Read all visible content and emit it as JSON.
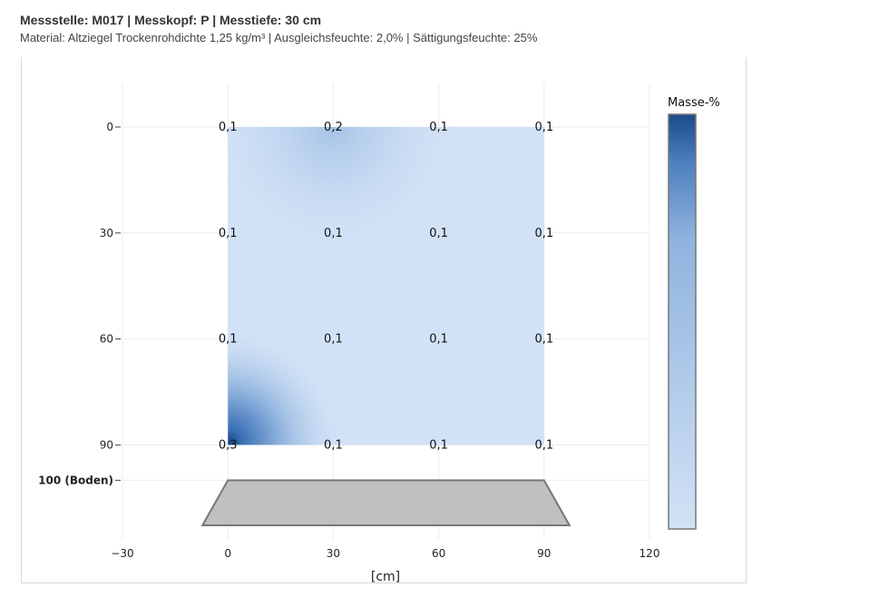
{
  "header": {
    "title": "Messstelle: M017 | Messkopf: P | Messtiefe: 30 cm",
    "subtitle": "Material: Altziegel Trockenrohdichte 1,25 kg/m³ | Ausgleichsfeuchte: 2,0% | Sättigungsfeuchte: 25%"
  },
  "chart_data": {
    "type": "heatmap",
    "title": "Messstelle: M017 | Messkopf: P | Messtiefe: 30 cm",
    "subtitle": "Material: Altziegel Trockenrohdichte 1,25 kg/m³ | Ausgleichsfeuchte: 2,0% | Sättigungsfeuchte: 25%",
    "xlabel": "[cm]",
    "ylabel": "",
    "x": [
      0,
      30,
      60,
      90
    ],
    "y": [
      0,
      30,
      60,
      90
    ],
    "z": [
      [
        0.1,
        0.2,
        0.1,
        0.1
      ],
      [
        0.1,
        0.1,
        0.1,
        0.1
      ],
      [
        0.1,
        0.1,
        0.1,
        0.1
      ],
      [
        0.3,
        0.1,
        0.1,
        0.1
      ]
    ],
    "labels": [
      [
        "0,1",
        "0,2",
        "0,1",
        "0,1"
      ],
      [
        "0,1",
        "0,1",
        "0,1",
        "0,1"
      ],
      [
        "0,1",
        "0,1",
        "0,1",
        "0,1"
      ],
      [
        "0,3",
        "0,1",
        "0,1",
        "0,1"
      ]
    ],
    "xlim": [
      -30,
      120
    ],
    "ylim": [
      115,
      0
    ],
    "x_ticks": [
      -30,
      0,
      30,
      60,
      90,
      120
    ],
    "x_tick_labels": [
      "−30",
      "0",
      "30",
      "60",
      "90",
      "120"
    ],
    "y_ticks": [
      0,
      30,
      60,
      90,
      100
    ],
    "y_tick_labels": [
      "0",
      "30",
      "60",
      "90",
      "100 (Boden)"
    ],
    "colorbar": {
      "title": "Masse-%",
      "colors": [
        "#d2e2f6",
        "#8fb3de",
        "#1a4a87"
      ]
    },
    "floor": {
      "label": "100 (Boden)",
      "color": "#c0c0c0"
    },
    "grid": true
  }
}
